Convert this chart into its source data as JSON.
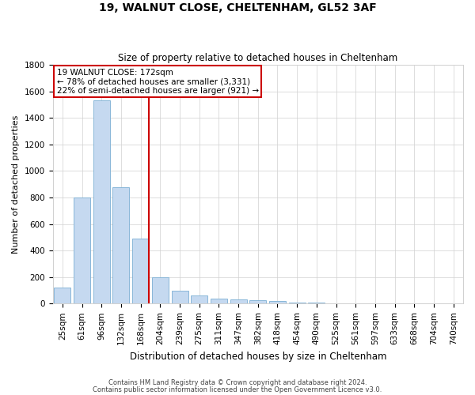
{
  "title1": "19, WALNUT CLOSE, CHELTENHAM, GL52 3AF",
  "title2": "Size of property relative to detached houses in Cheltenham",
  "xlabel": "Distribution of detached houses by size in Cheltenham",
  "ylabel": "Number of detached properties",
  "footer1": "Contains HM Land Registry data © Crown copyright and database right 2024.",
  "footer2": "Contains public sector information licensed under the Open Government Licence v3.0.",
  "categories": [
    "25sqm",
    "61sqm",
    "96sqm",
    "132sqm",
    "168sqm",
    "204sqm",
    "239sqm",
    "275sqm",
    "311sqm",
    "347sqm",
    "382sqm",
    "418sqm",
    "454sqm",
    "490sqm",
    "525sqm",
    "561sqm",
    "597sqm",
    "633sqm",
    "668sqm",
    "704sqm",
    "740sqm"
  ],
  "values": [
    120,
    800,
    1530,
    880,
    490,
    200,
    100,
    60,
    40,
    30,
    25,
    20,
    5,
    5,
    3,
    3,
    2,
    2,
    1,
    1,
    1
  ],
  "bar_color": "#c5d9f0",
  "bar_edge_color": "#7bafd4",
  "vline_bar_index": 4,
  "annotation_text1": "19 WALNUT CLOSE: 172sqm",
  "annotation_text2": "← 78% of detached houses are smaller (3,331)",
  "annotation_text3": "22% of semi-detached houses are larger (921) →",
  "annotation_box_color": "#ffffff",
  "annotation_box_edge": "#cc0000",
  "vline_color": "#cc0000",
  "ylim": [
    0,
    1800
  ],
  "yticks": [
    0,
    200,
    400,
    600,
    800,
    1000,
    1200,
    1400,
    1600,
    1800
  ],
  "grid_color": "#d0d0d0",
  "title1_fontsize": 10,
  "title2_fontsize": 8.5,
  "xlabel_fontsize": 8.5,
  "ylabel_fontsize": 8,
  "tick_fontsize": 7.5,
  "footer_fontsize": 6,
  "ann_fontsize": 7.5
}
